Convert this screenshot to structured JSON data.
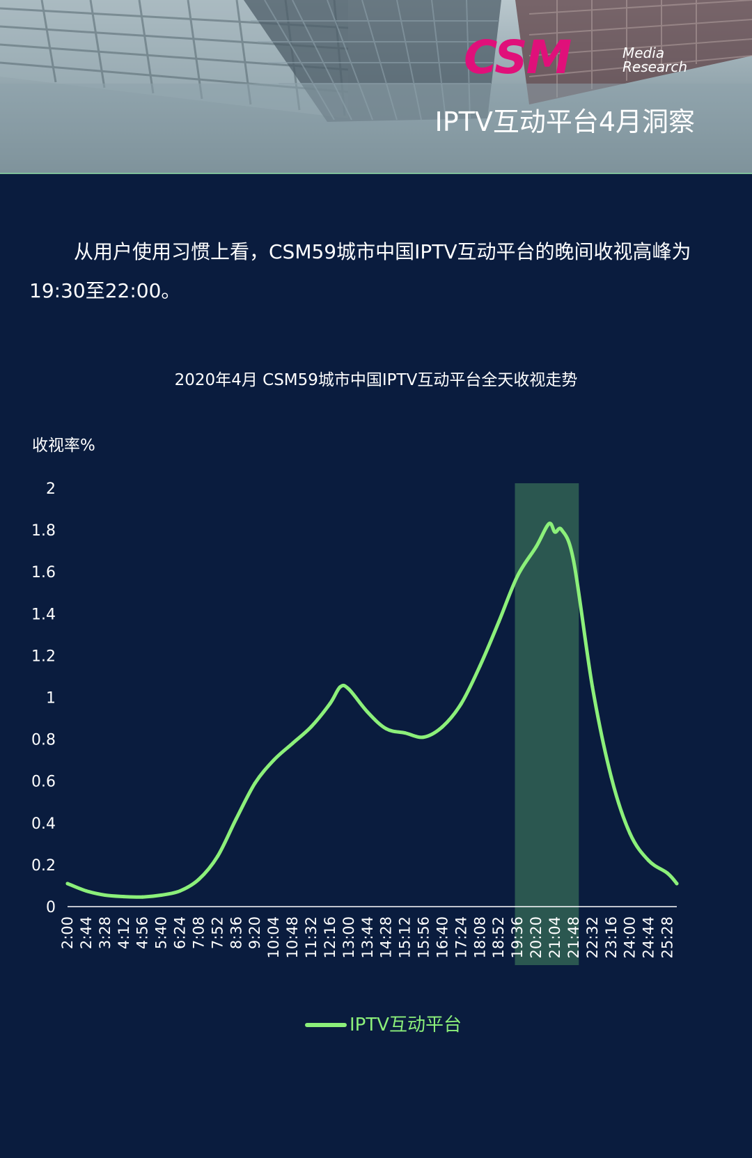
{
  "header": {
    "logo_main": "CSM",
    "logo_sub_line1": "Media",
    "logo_sub_line2": "Research",
    "title": "IPTV互动平台4月洞察"
  },
  "intro": {
    "text": "从用户使用习惯上看，CSM59城市中国IPTV互动平台的晚间收视高峰为19:30至22:00。"
  },
  "chart_data": {
    "type": "line",
    "title": "2020年4月  CSM59城市中国IPTV互动平台全天收视走势",
    "xlabel": "",
    "ylabel": "收视率%",
    "ylim": [
      0,
      2
    ],
    "yticks": [
      "0",
      "0.2",
      "0.4",
      "0.6",
      "0.8",
      "1",
      "1.2",
      "1.4",
      "1.6",
      "1.8",
      "2"
    ],
    "xticks": [
      "2:00",
      "2:44",
      "3:28",
      "4:12",
      "4:56",
      "5:40",
      "6:24",
      "7:08",
      "7:52",
      "8:36",
      "9:20",
      "10:04",
      "10:48",
      "11:32",
      "12:16",
      "13:00",
      "13:44",
      "14:28",
      "15:12",
      "15:56",
      "16:40",
      "17:24",
      "18:08",
      "18:52",
      "19:36",
      "20:20",
      "21:04",
      "21:48",
      "22:32",
      "23:16",
      "24:00",
      "24:44",
      "25:28"
    ],
    "highlight": {
      "from": "19:30",
      "to": "22:00",
      "color": "#2f5e52"
    },
    "series": [
      {
        "name": "IPTV互动平台",
        "color": "#8cf07a",
        "points": [
          [
            "2:00",
            0.11
          ],
          [
            "2:44",
            0.075
          ],
          [
            "3:28",
            0.055
          ],
          [
            "4:12",
            0.048
          ],
          [
            "4:56",
            0.046
          ],
          [
            "5:40",
            0.055
          ],
          [
            "6:24",
            0.075
          ],
          [
            "7:08",
            0.13
          ],
          [
            "7:52",
            0.24
          ],
          [
            "8:36",
            0.42
          ],
          [
            "9:20",
            0.59
          ],
          [
            "10:04",
            0.7
          ],
          [
            "10:48",
            0.78
          ],
          [
            "11:32",
            0.86
          ],
          [
            "12:16",
            0.97
          ],
          [
            "12:40",
            1.05
          ],
          [
            "13:00",
            1.04
          ],
          [
            "13:44",
            0.93
          ],
          [
            "14:28",
            0.85
          ],
          [
            "15:12",
            0.83
          ],
          [
            "15:56",
            0.81
          ],
          [
            "16:40",
            0.86
          ],
          [
            "17:24",
            0.97
          ],
          [
            "18:08",
            1.15
          ],
          [
            "18:52",
            1.36
          ],
          [
            "19:36",
            1.58
          ],
          [
            "20:20",
            1.72
          ],
          [
            "20:50",
            1.83
          ],
          [
            "21:04",
            1.79
          ],
          [
            "21:20",
            1.8
          ],
          [
            "21:48",
            1.65
          ],
          [
            "22:32",
            1.05
          ],
          [
            "23:16",
            0.62
          ],
          [
            "24:00",
            0.35
          ],
          [
            "24:44",
            0.22
          ],
          [
            "25:28",
            0.16
          ],
          [
            "25:50",
            0.11
          ]
        ]
      }
    ],
    "grid": false,
    "legend_position": "bottom"
  }
}
